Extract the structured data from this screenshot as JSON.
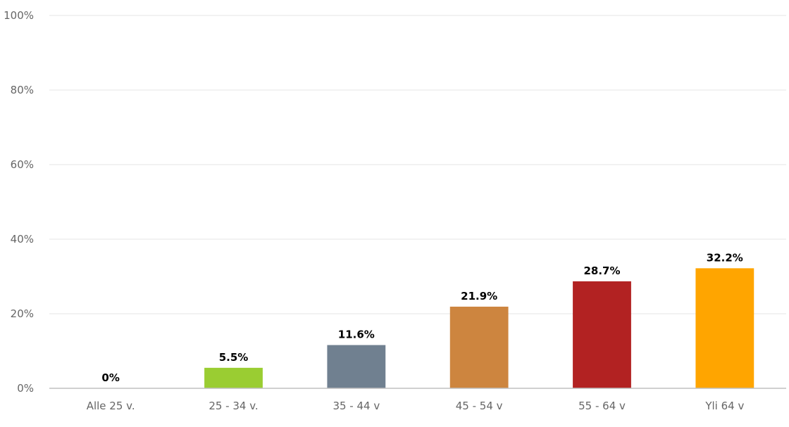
{
  "chart_data": {
    "type": "bar",
    "categories": [
      "Alle 25 v.",
      "25 - 34 v.",
      "35 - 44 v",
      "45 - 54 v",
      "55 - 64 v",
      "Yli 64 v"
    ],
    "values": [
      0,
      5.5,
      11.6,
      21.9,
      28.7,
      32.2
    ],
    "data_labels": [
      "0%",
      "5.5%",
      "11.6%",
      "21.9%",
      "28.7%",
      "32.2%"
    ],
    "colors": [
      "#c3c3c3",
      "#9acd32",
      "#708090",
      "#cd853f",
      "#b22222",
      "#ffa500"
    ],
    "ylim": [
      0,
      100
    ],
    "y_ticks": [
      0,
      20,
      40,
      60,
      80,
      100
    ],
    "y_tick_labels": [
      "0%",
      "20%",
      "40%",
      "60%",
      "80%",
      "100%"
    ],
    "grid": true,
    "legend": "none"
  }
}
